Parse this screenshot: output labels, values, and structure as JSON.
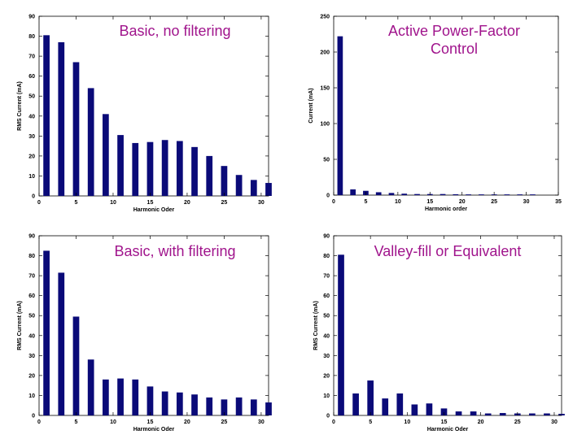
{
  "bar_color": "#0a0a78",
  "title_color": "#a0148c",
  "chart_data": [
    {
      "type": "bar",
      "title": "Basic, no filtering",
      "xlabel": "Harmonic Oder",
      "ylabel": "RMS Current (mA)",
      "xlim": [
        0,
        31
      ],
      "ylim": [
        0,
        90
      ],
      "xticks": [
        0,
        5,
        10,
        15,
        20,
        25,
        30
      ],
      "yticks": [
        0,
        10,
        20,
        30,
        40,
        50,
        60,
        70,
        80,
        90
      ],
      "x": [
        1,
        3,
        5,
        7,
        9,
        11,
        13,
        15,
        17,
        19,
        21,
        23,
        25,
        27,
        29,
        31
      ],
      "values": [
        80.5,
        77,
        67,
        54,
        41,
        30.5,
        26.5,
        27,
        28,
        27.5,
        24.5,
        20,
        15,
        10.5,
        8,
        6.5
      ],
      "grid": false
    },
    {
      "type": "bar",
      "title": "Active Power-Factor\nControl",
      "xlabel": "Harmonic order",
      "ylabel": "Current (mA)",
      "xlim": [
        0,
        35
      ],
      "ylim": [
        0,
        250
      ],
      "xticks": [
        0,
        5,
        10,
        15,
        20,
        25,
        30,
        35
      ],
      "yticks": [
        0,
        50,
        100,
        150,
        200,
        250
      ],
      "x": [
        1,
        3,
        5,
        7,
        9,
        11,
        13,
        15,
        17,
        19,
        21,
        23,
        25,
        27,
        29,
        31
      ],
      "values": [
        222,
        8,
        6,
        4,
        3,
        2,
        1.5,
        1.5,
        1.5,
        1.2,
        1,
        1,
        1,
        1,
        1,
        1
      ],
      "grid": false
    },
    {
      "type": "bar",
      "title": "Basic, with filtering",
      "xlabel": "Harmonic Oder",
      "ylabel": "RMS Current (mA)",
      "xlim": [
        0,
        31
      ],
      "ylim": [
        0,
        90
      ],
      "xticks": [
        0,
        5,
        10,
        15,
        20,
        25,
        30
      ],
      "yticks": [
        0,
        10,
        20,
        30,
        40,
        50,
        60,
        70,
        80,
        90
      ],
      "x": [
        1,
        3,
        5,
        7,
        9,
        11,
        13,
        15,
        17,
        19,
        21,
        23,
        25,
        27,
        29,
        31
      ],
      "values": [
        82.5,
        71.5,
        49.5,
        28,
        18,
        18.5,
        18,
        14.5,
        12,
        11.5,
        10.5,
        9,
        8,
        9,
        8,
        6.5
      ],
      "grid": false
    },
    {
      "type": "bar",
      "title": "Valley-fill or Equivalent",
      "xlabel": "Harmonic Oder",
      "ylabel": "RMS Current (mA)",
      "xlim": [
        0,
        31
      ],
      "ylim": [
        0,
        90
      ],
      "xticks": [
        0,
        5,
        10,
        15,
        20,
        25,
        30
      ],
      "yticks": [
        0,
        10,
        20,
        30,
        40,
        50,
        60,
        70,
        80,
        90
      ],
      "x": [
        1,
        3,
        5,
        7,
        9,
        11,
        13,
        15,
        17,
        19,
        21,
        23,
        25,
        27,
        29,
        31
      ],
      "values": [
        80.5,
        11,
        17.5,
        8.5,
        11,
        5.5,
        6,
        3.5,
        2,
        2,
        1,
        1.2,
        1,
        1,
        1,
        0.8
      ],
      "grid": false
    }
  ]
}
